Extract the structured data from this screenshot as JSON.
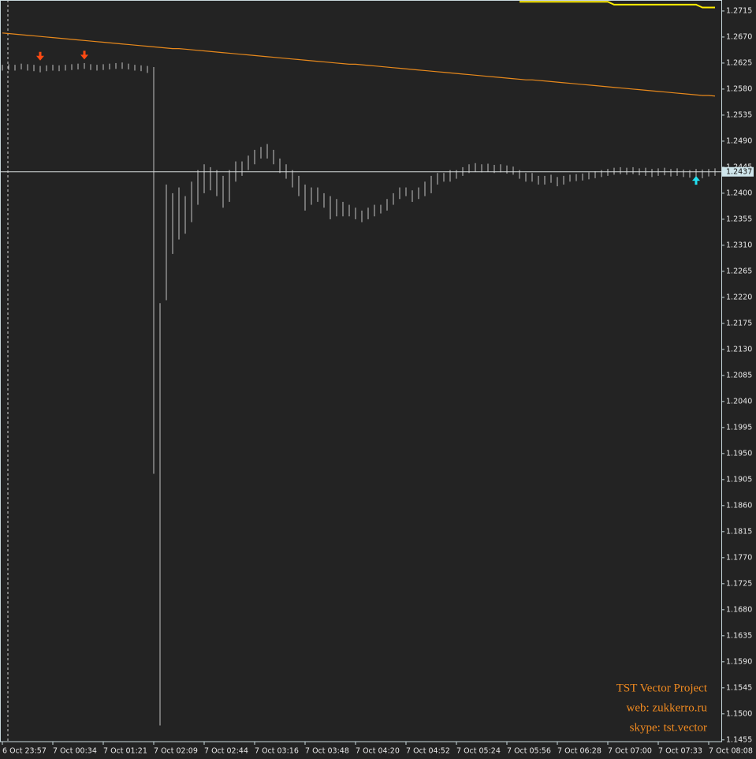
{
  "chart_data": {
    "type": "ohlc",
    "color": "#a8a8a8",
    "grid": false,
    "categories": [
      "6 Oct 23:57",
      null,
      null,
      null,
      null,
      null,
      null,
      null,
      "7 Oct 00:34",
      null,
      null,
      null,
      null,
      null,
      null,
      null,
      "7 Oct 01:21",
      null,
      null,
      null,
      null,
      null,
      null,
      null,
      "7 Oct 02:09",
      null,
      null,
      null,
      null,
      null,
      null,
      null,
      "7 Oct 02:44",
      null,
      null,
      null,
      null,
      null,
      null,
      null,
      "7 Oct 03:16",
      null,
      null,
      null,
      null,
      null,
      null,
      null,
      "7 Oct 03:48",
      null,
      null,
      null,
      null,
      null,
      null,
      null,
      "7 Oct 04:20",
      null,
      null,
      null,
      null,
      null,
      null,
      null,
      "7 Oct 04:52",
      null,
      null,
      null,
      null,
      null,
      null,
      null,
      "7 Oct 05:24",
      null,
      null,
      null,
      null,
      null,
      null,
      null,
      "7 Oct 05:56",
      null,
      null,
      null,
      null,
      null,
      null,
      null,
      "7 Oct 06:28",
      null,
      null,
      null,
      null,
      null,
      null,
      null,
      "7 Oct 07:00",
      null,
      null,
      null,
      null,
      null,
      null,
      null,
      "7 Oct 07:33",
      null,
      null,
      null,
      null,
      null,
      null,
      null,
      "7 Oct 08:08",
      null
    ],
    "high": [
      1.2622,
      1.2623,
      1.2622,
      1.2624,
      1.2623,
      1.2622,
      1.262,
      1.2621,
      1.2622,
      1.2621,
      1.2622,
      1.2623,
      1.2624,
      1.2625,
      1.2623,
      1.2622,
      1.2623,
      1.2624,
      1.2625,
      1.2626,
      1.2624,
      1.2622,
      1.2621,
      1.262,
      1.2618,
      1.221,
      1.2415,
      1.24,
      1.241,
      1.2395,
      1.242,
      1.244,
      1.245,
      1.2445,
      1.244,
      1.243,
      1.244,
      1.2455,
      1.2455,
      1.2465,
      1.2475,
      1.248,
      1.2485,
      1.2475,
      1.246,
      1.245,
      1.244,
      1.243,
      1.2415,
      1.241,
      1.241,
      1.24,
      1.2395,
      1.239,
      1.2385,
      1.238,
      1.2375,
      1.237,
      1.2375,
      1.238,
      1.238,
      1.239,
      1.24,
      1.241,
      1.241,
      1.2405,
      1.241,
      1.242,
      1.243,
      1.2435,
      1.2435,
      1.244,
      1.244,
      1.2445,
      1.245,
      1.2452,
      1.245,
      1.2451,
      1.2449,
      1.245,
      1.2448,
      1.2446,
      1.244,
      1.2435,
      1.2435,
      1.243,
      1.243,
      1.2432,
      1.2428,
      1.243,
      1.2432,
      1.2433,
      1.2434,
      1.2436,
      1.2438,
      1.244,
      1.2442,
      1.2444,
      1.2445,
      1.2444,
      1.2445,
      1.2443,
      1.2444,
      1.2442,
      1.2443,
      1.2444,
      1.2442,
      1.2443,
      1.2441,
      1.244,
      1.2442,
      1.2441,
      1.2442,
      1.2443
    ],
    "low": [
      1.2612,
      1.2613,
      1.2612,
      1.2614,
      1.2612,
      1.2611,
      1.2609,
      1.2611,
      1.2612,
      1.2611,
      1.2612,
      1.2613,
      1.2614,
      1.2615,
      1.2613,
      1.2612,
      1.2613,
      1.2614,
      1.2615,
      1.2615,
      1.2614,
      1.2612,
      1.2611,
      1.2608,
      1.1915,
      1.148,
      1.2215,
      1.2295,
      1.232,
      1.233,
      1.235,
      1.238,
      1.24,
      1.2405,
      1.2395,
      1.2375,
      1.2385,
      1.242,
      1.243,
      1.244,
      1.245,
      1.246,
      1.246,
      1.245,
      1.2435,
      1.2425,
      1.241,
      1.2395,
      1.237,
      1.238,
      1.2385,
      1.2375,
      1.2355,
      1.236,
      1.236,
      1.236,
      1.2355,
      1.235,
      1.2355,
      1.236,
      1.2365,
      1.237,
      1.238,
      1.239,
      1.2395,
      1.2385,
      1.239,
      1.2395,
      1.24,
      1.2415,
      1.242,
      1.242,
      1.2425,
      1.243,
      1.2435,
      1.2437,
      1.2436,
      1.2437,
      1.2435,
      1.2436,
      1.2434,
      1.2432,
      1.2425,
      1.242,
      1.242,
      1.2415,
      1.2415,
      1.2418,
      1.2412,
      1.2415,
      1.242,
      1.2421,
      1.2422,
      1.2424,
      1.2426,
      1.2428,
      1.243,
      1.2432,
      1.2433,
      1.2432,
      1.2433,
      1.2431,
      1.243,
      1.2428,
      1.243,
      1.2431,
      1.2429,
      1.243,
      1.2428,
      1.2427,
      1.2428,
      1.2426,
      1.2429,
      1.243
    ],
    "lines": [
      {
        "color": "#e8891c",
        "values": [
          1.2677,
          1.2676,
          1.2675,
          1.2674,
          1.2673,
          1.2672,
          1.2671,
          1.267,
          1.2669,
          1.2668,
          1.2667,
          1.2666,
          1.2665,
          1.2664,
          1.2663,
          1.2662,
          1.2661,
          1.266,
          1.2659,
          1.2658,
          1.2657,
          1.2656,
          1.2655,
          1.2654,
          1.2653,
          1.2652,
          1.2651,
          1.265,
          1.265,
          1.2649,
          1.2648,
          1.2647,
          1.2646,
          1.2645,
          1.2644,
          1.2643,
          1.2642,
          1.2641,
          1.264,
          1.2639,
          1.2638,
          1.2637,
          1.2636,
          1.2635,
          1.2634,
          1.2633,
          1.2632,
          1.2631,
          1.263,
          1.2629,
          1.2628,
          1.2627,
          1.2626,
          1.2625,
          1.2624,
          1.2623,
          1.2623,
          1.2622,
          1.2621,
          1.262,
          1.2619,
          1.2618,
          1.2617,
          1.2616,
          1.2615,
          1.2614,
          1.2613,
          1.2612,
          1.2611,
          1.261,
          1.2609,
          1.2608,
          1.2607,
          1.2606,
          1.2605,
          1.2604,
          1.2603,
          1.2602,
          1.2601,
          1.26,
          1.2599,
          1.2598,
          1.2597,
          1.2596,
          1.2596,
          1.2595,
          1.2594,
          1.2593,
          1.2592,
          1.2591,
          1.259,
          1.2589,
          1.2588,
          1.2587,
          1.2586,
          1.2585,
          1.2584,
          1.2583,
          1.2582,
          1.2581,
          1.258,
          1.2579,
          1.2578,
          1.2577,
          1.2576,
          1.2575,
          1.2574,
          1.2573,
          1.2572,
          1.2571,
          1.257,
          1.2569,
          1.2569,
          1.2568
        ]
      },
      {
        "color": "#ffee00",
        "values": [
          null,
          null,
          null,
          null,
          null,
          null,
          null,
          null,
          null,
          null,
          null,
          null,
          null,
          null,
          null,
          null,
          null,
          null,
          null,
          null,
          null,
          null,
          null,
          null,
          null,
          null,
          null,
          null,
          null,
          null,
          null,
          null,
          null,
          null,
          null,
          null,
          null,
          null,
          null,
          null,
          null,
          null,
          null,
          null,
          null,
          null,
          null,
          null,
          null,
          null,
          null,
          null,
          null,
          null,
          null,
          null,
          null,
          null,
          null,
          null,
          null,
          null,
          null,
          null,
          null,
          null,
          null,
          null,
          null,
          null,
          null,
          null,
          null,
          null,
          null,
          null,
          null,
          null,
          null,
          null,
          null,
          null,
          1.2731,
          1.2731,
          1.2731,
          1.2731,
          1.2731,
          1.2731,
          1.2731,
          1.2731,
          1.2731,
          1.2731,
          1.2731,
          1.2731,
          1.2731,
          1.2731,
          1.2731,
          1.2726,
          1.2726,
          1.2726,
          1.2726,
          1.2726,
          1.2726,
          1.2726,
          1.2726,
          1.2726,
          1.2726,
          1.2726,
          1.2726,
          1.2726,
          1.2726,
          1.2721,
          1.2721,
          1.2721
        ]
      }
    ],
    "signals": {
      "sell": {
        "color": "#ff4a12",
        "index": [
          6,
          13
        ],
        "values": [
          1.2632,
          1.2634
        ]
      },
      "buy": {
        "color": "#22e0f0",
        "index": [
          110
        ],
        "values": [
          1.2427
        ]
      }
    },
    "current_price": 1.2437,
    "ylim": [
      1.1452,
      1.2734
    ],
    "yticks": [
      1.2715,
      {
        "value": 1.267,
        "label": "1.2670"
      },
      1.2625,
      {
        "value": 1.258,
        "label": "1.2580"
      },
      1.2535,
      {
        "value": 1.249,
        "label": "1.2490"
      },
      1.2445,
      {
        "value": 1.24,
        "label": "1.2400"
      },
      1.2355,
      {
        "value": 1.231,
        "label": "1.2310"
      },
      1.2265,
      {
        "value": 1.222,
        "label": "1.2220"
      },
      1.2175,
      {
        "value": 1.213,
        "label": "1.2130"
      },
      1.2085,
      {
        "value": 1.204,
        "label": "1.2040"
      },
      1.1995,
      {
        "value": 1.195,
        "label": "1.1950"
      },
      1.1905,
      {
        "value": 1.186,
        "label": "1.1860"
      },
      1.1815,
      {
        "value": 1.177,
        "label": "1.1770"
      },
      1.1725,
      {
        "value": 1.168,
        "label": "1.1680"
      },
      1.1635,
      {
        "value": 1.159,
        "label": "1.1590"
      },
      1.1545,
      {
        "value": 1.15,
        "label": "1.1500"
      },
      1.1455
    ],
    "watermark": [
      "TST Vector Project",
      "web: zukkerro.ru",
      "skype: tst.vector"
    ]
  }
}
